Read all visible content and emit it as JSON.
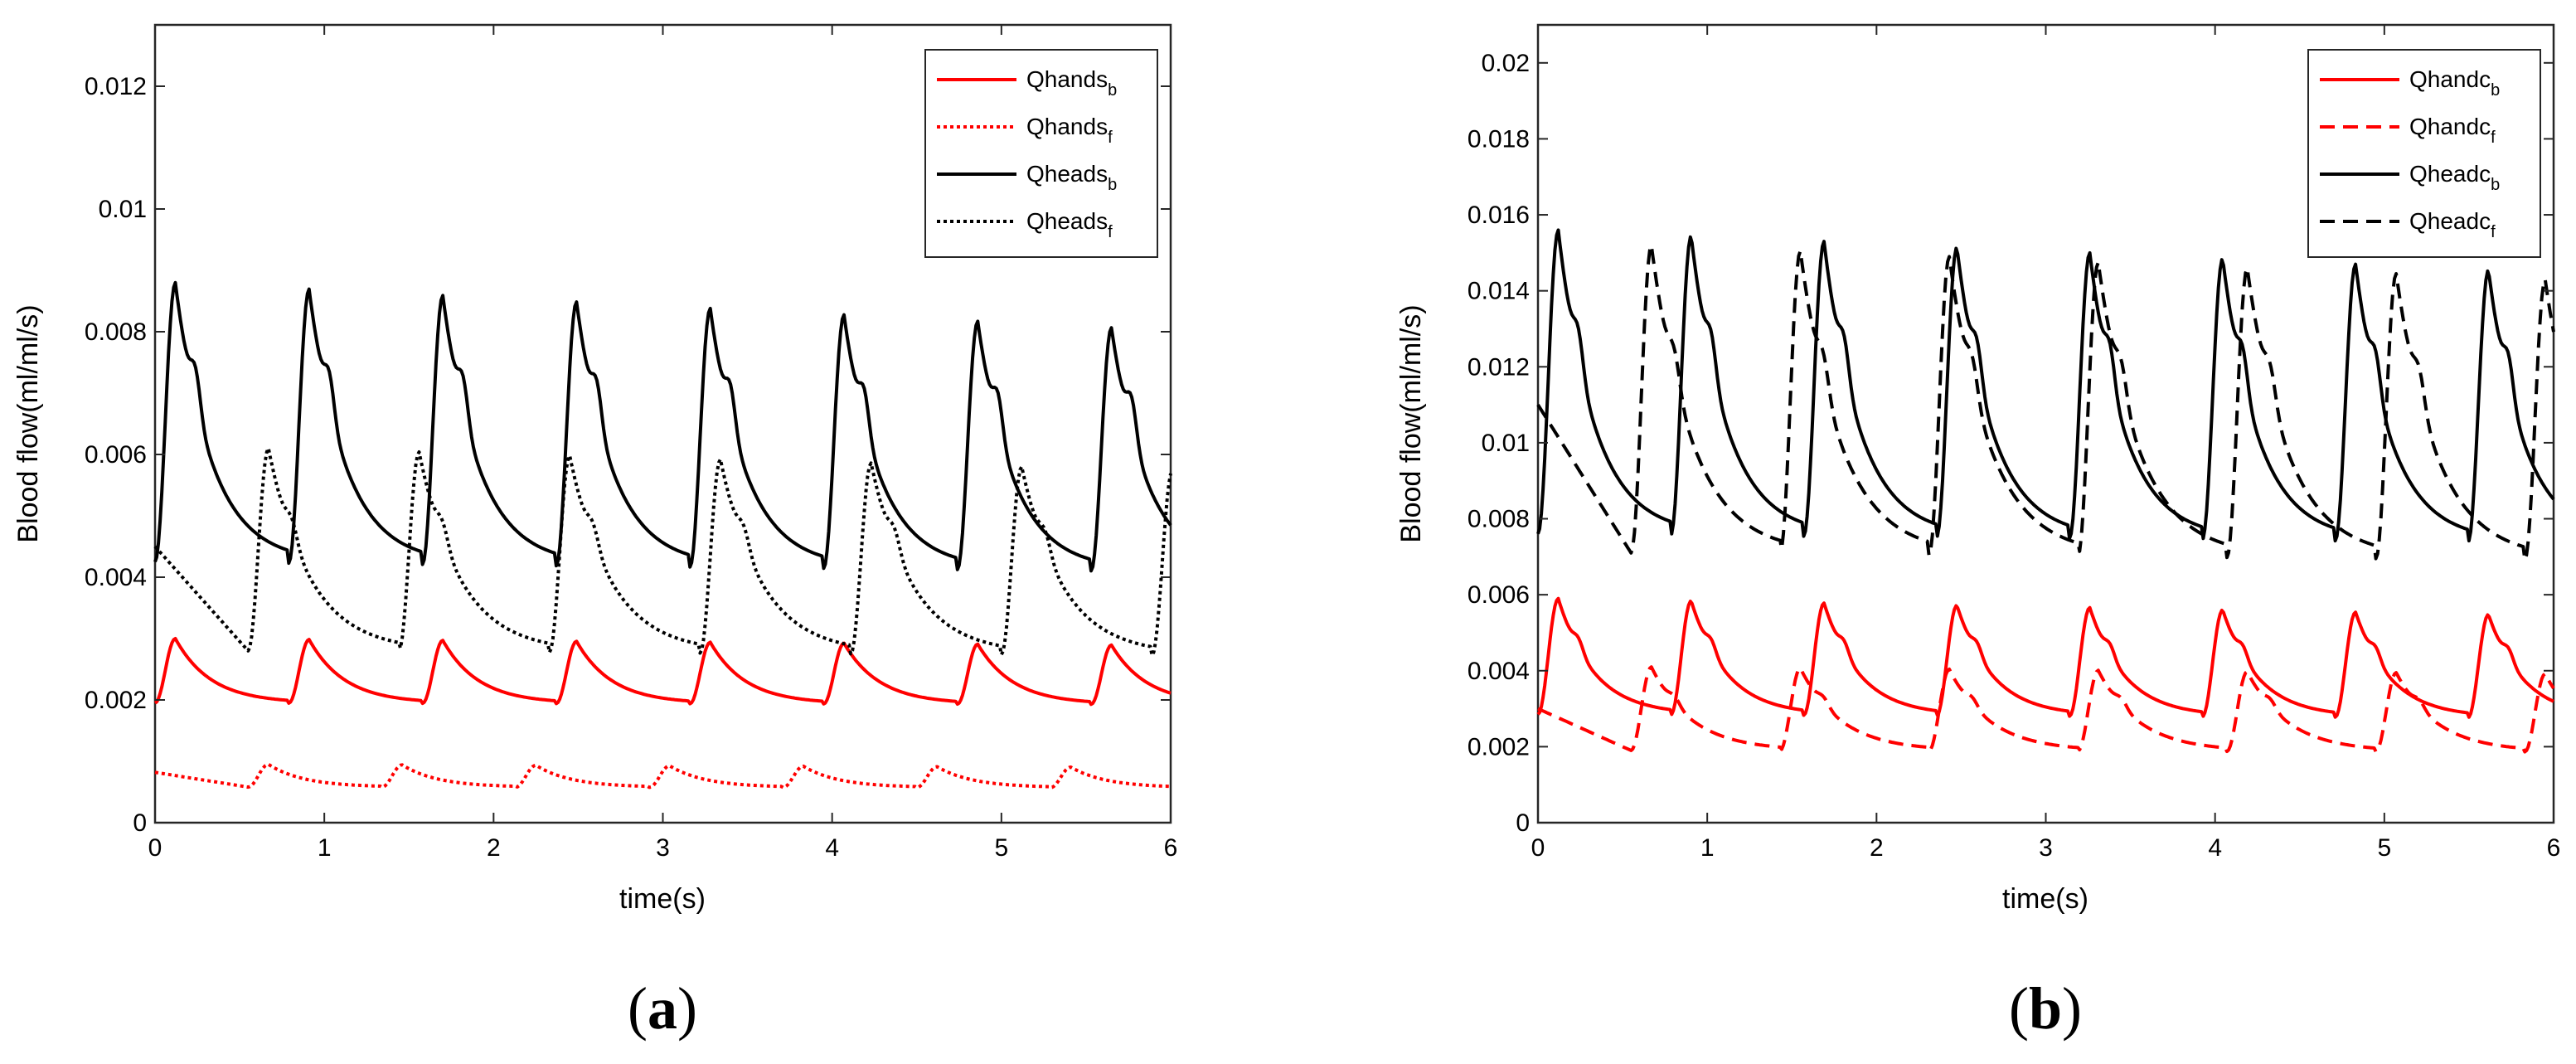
{
  "chart_data": [
    {
      "type": "line",
      "panel_label": "a",
      "xlabel": "time(s)",
      "ylabel": "Blood flow(ml/ml/s)",
      "xlim": [
        0,
        6
      ],
      "ylim": [
        0,
        0.013
      ],
      "xticks": [
        0,
        1,
        2,
        3,
        4,
        5,
        6
      ],
      "yticks": [
        0,
        0.002,
        0.004,
        0.006,
        0.008,
        0.01,
        0.012
      ],
      "xtick_labels": [
        "0",
        "1",
        "2",
        "3",
        "4",
        "5",
        "6"
      ],
      "ytick_labels": [
        "0",
        "0.002",
        "0.004",
        "0.006",
        "0.008",
        "0.01",
        "0.012"
      ],
      "grid": false,
      "legend_position": "top-right",
      "series": [
        {
          "name": "Qhands",
          "sub": "b",
          "color": "#ff0000",
          "dash": "solid",
          "model": {
            "period": 0.79,
            "offset": 0.0,
            "start": 2.1,
            "peak": 3.0,
            "min": 1.95,
            "decay": 0.0025,
            "notch": 0.0,
            "cycleDrop": 0.01
          }
        },
        {
          "name": "Qhands",
          "sub": "f",
          "color": "#ff0000",
          "dash": "dotted",
          "model": {
            "period": 0.79,
            "offset": 0.55,
            "start": 0.82,
            "peak": 0.95,
            "min": 0.58,
            "decay": 0.002,
            "notch": 0.0,
            "cycleDrop": 0.005
          }
        },
        {
          "name": "Qheads",
          "sub": "b",
          "color": "#000000",
          "dash": "solid",
          "model": {
            "period": 0.79,
            "offset": 0.0,
            "start": 4.9,
            "peak": 8.8,
            "min": 4.25,
            "decay": 0.004,
            "notch": 0.6,
            "cycleDrop": 0.07
          }
        },
        {
          "name": "Qheads",
          "sub": "f",
          "color": "#000000",
          "dash": "dotted",
          "model": {
            "period": 0.89,
            "offset": 0.55,
            "start": 4.5,
            "peak": 6.1,
            "min": 2.8,
            "decay": 0.003,
            "notch": 0.3,
            "cycleDrop": 0.04
          }
        }
      ]
    },
    {
      "type": "line",
      "panel_label": "b",
      "xlabel": "time(s)",
      "ylabel": "Blood flow(ml/ml/s)",
      "xlim": [
        0,
        6
      ],
      "ylim": [
        0,
        0.021
      ],
      "xticks": [
        0,
        1,
        2,
        3,
        4,
        5,
        6
      ],
      "yticks": [
        0,
        0.002,
        0.004,
        0.006,
        0.008,
        0.01,
        0.012,
        0.014,
        0.016,
        0.018,
        0.02
      ],
      "xtick_labels": [
        "0",
        "1",
        "2",
        "3",
        "4",
        "5",
        "6"
      ],
      "ytick_labels": [
        "0",
        "0.002",
        "0.004",
        "0.006",
        "0.008",
        "0.01",
        "0.012",
        "0.014",
        "0.016",
        "0.018",
        "0.02"
      ],
      "grid": false,
      "legend_position": "top-right",
      "series": [
        {
          "name": "Qhandc",
          "sub": "b",
          "color": "#ff0000",
          "dash": "solid",
          "model": {
            "period": 0.785,
            "offset": 0.0,
            "start": 3.3,
            "peak": 5.9,
            "min": 2.85,
            "decay": 0.003,
            "notch": 0.3,
            "cycleDrop": 0.04
          }
        },
        {
          "name": "Qhandc",
          "sub": "f",
          "color": "#ff0000",
          "dash": "dashed",
          "model": {
            "period": 0.88,
            "offset": 0.55,
            "start": 3.0,
            "peak": 4.1,
            "min": 1.9,
            "decay": 0.002,
            "notch": 0.2,
            "cycleDrop": 0.02
          }
        },
        {
          "name": "Qheadc",
          "sub": "b",
          "color": "#000000",
          "dash": "solid",
          "model": {
            "period": 0.785,
            "offset": 0.0,
            "start": 8.6,
            "peak": 15.6,
            "min": 7.6,
            "decay": 0.006,
            "notch": 0.9,
            "cycleDrop": 0.1
          }
        },
        {
          "name": "Qheadc",
          "sub": "f",
          "color": "#000000",
          "dash": "dashed",
          "model": {
            "period": 0.88,
            "offset": 0.55,
            "start": 11.0,
            "peak": 15.2,
            "min": 7.1,
            "decay": 0.005,
            "notch": 0.8,
            "cycleDrop": 0.1
          }
        }
      ]
    }
  ]
}
